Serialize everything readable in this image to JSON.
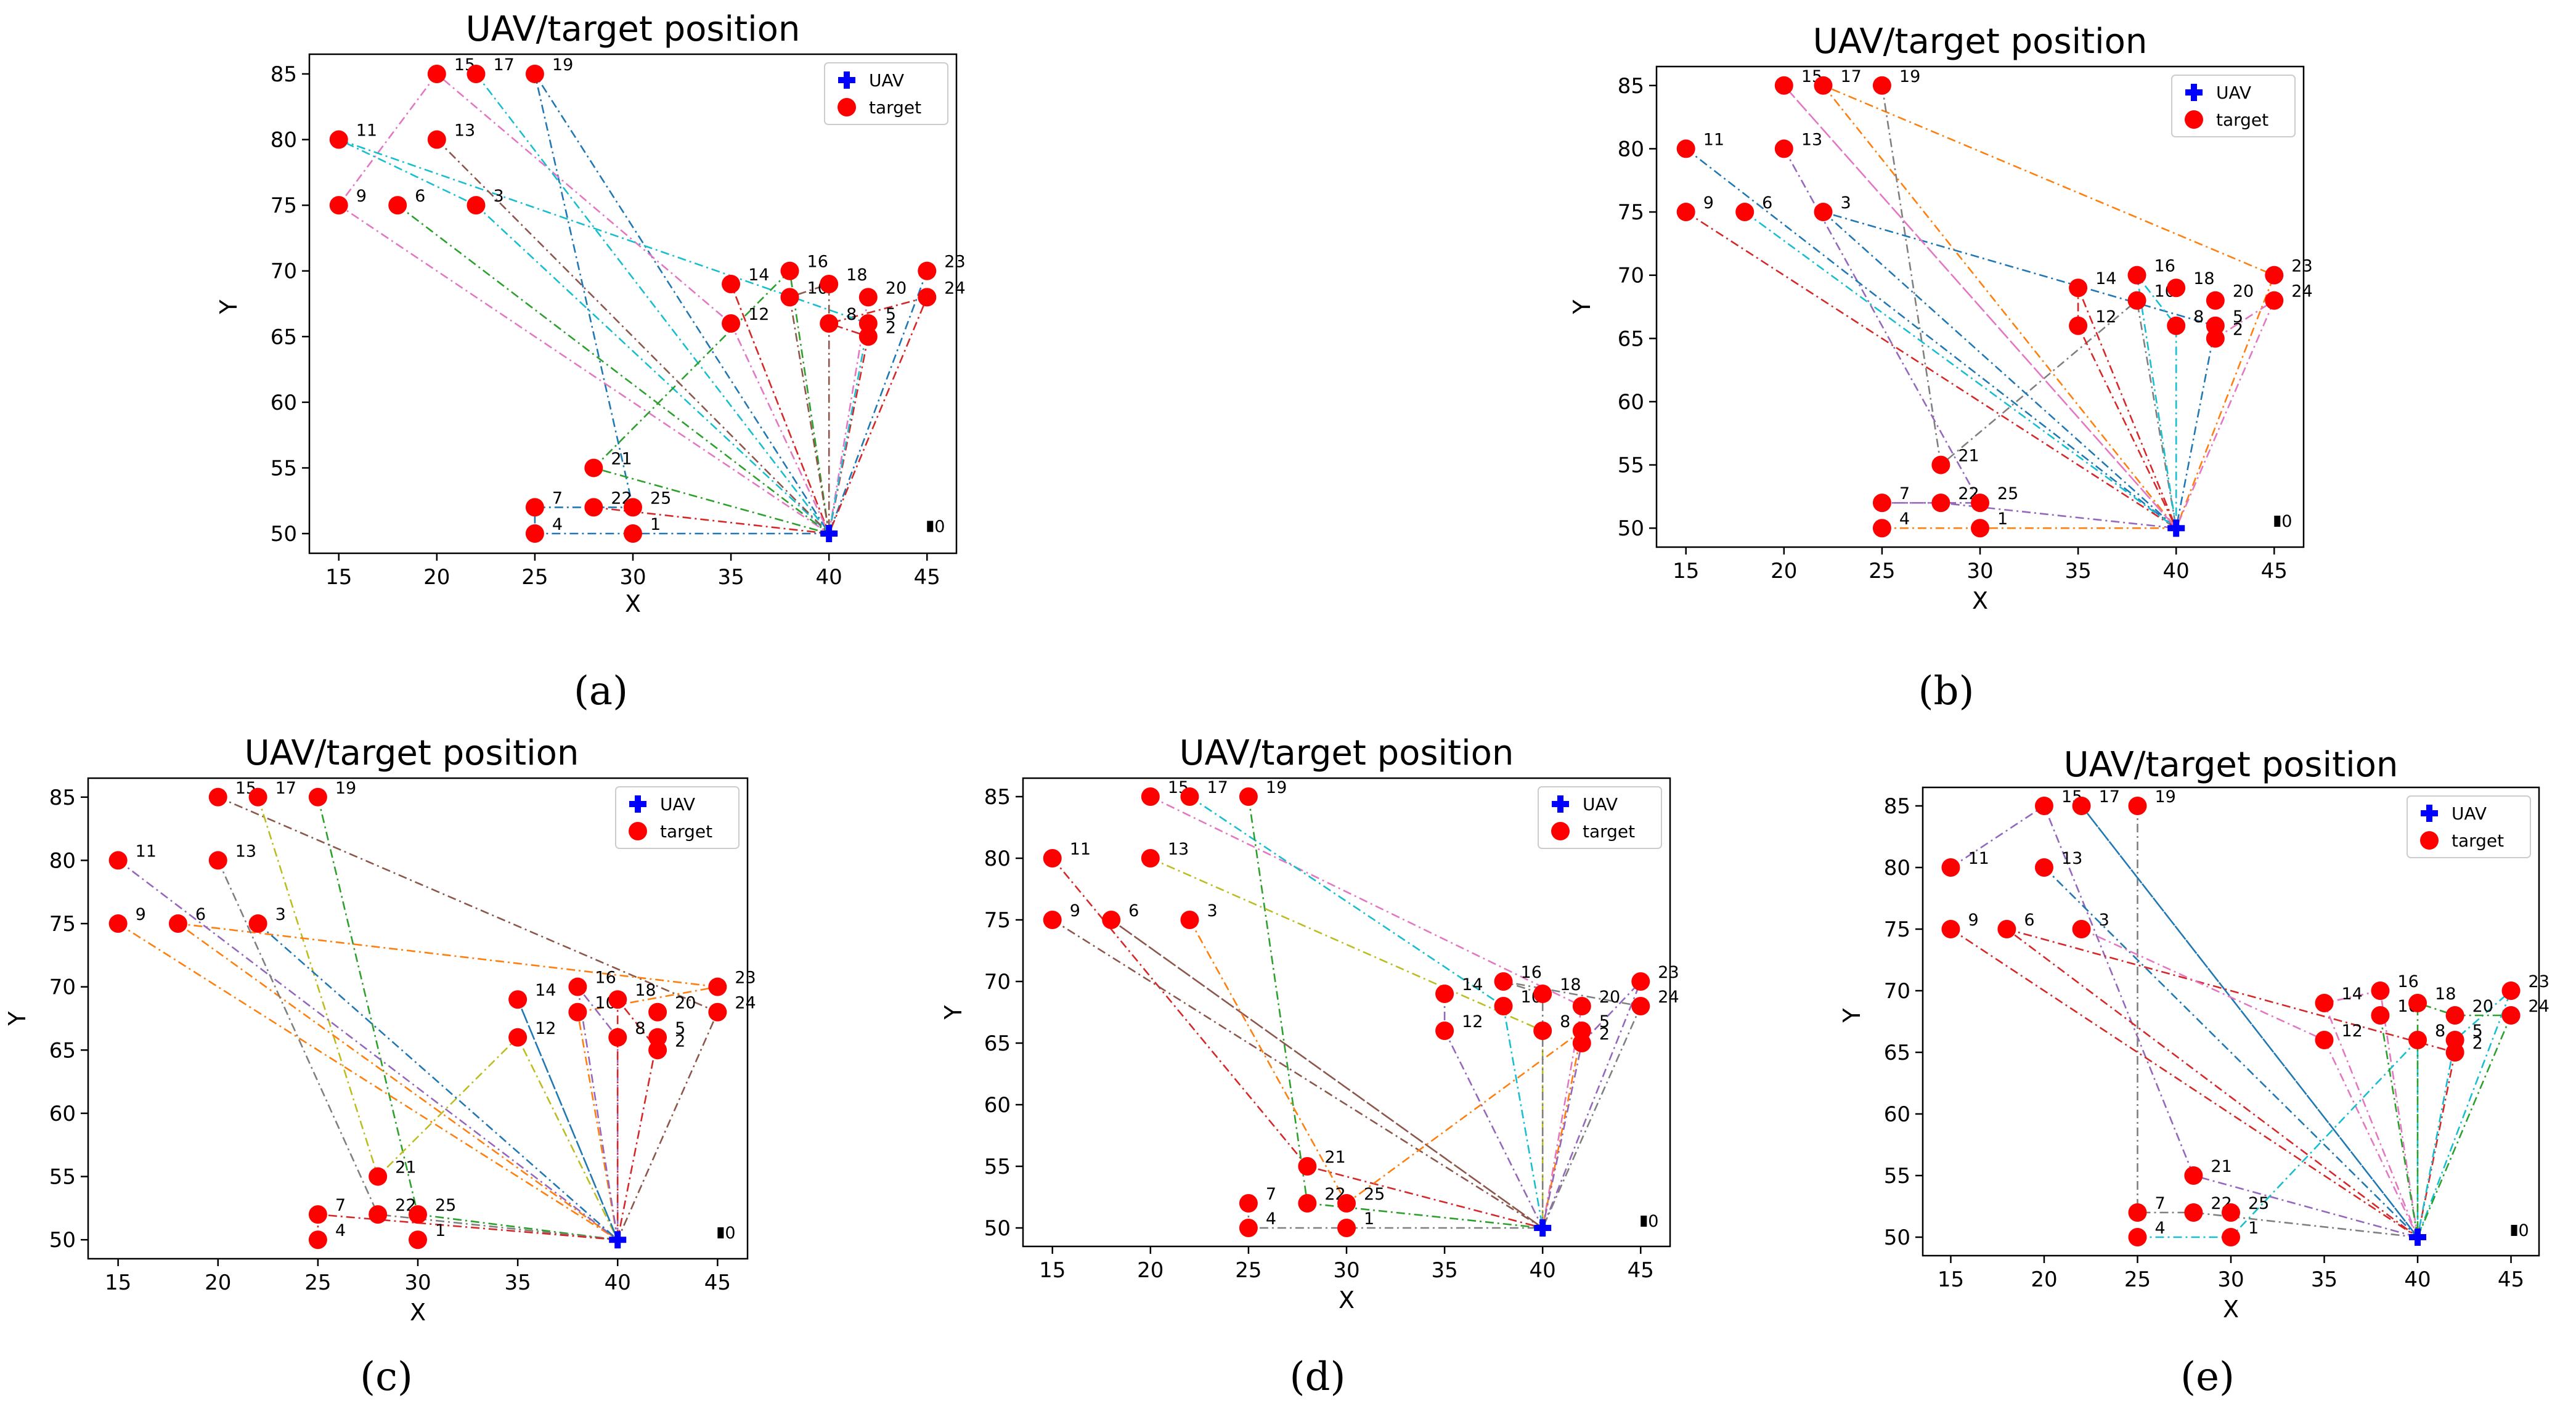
{
  "colors": {
    "uav": "#0000ff",
    "target": "#ff0000",
    "axis": "#000000",
    "route_palette": [
      "#1f77b4",
      "#ff7f0e",
      "#2ca02c",
      "#d62728",
      "#9467bd",
      "#8c564b",
      "#e377c2",
      "#7f7f7f",
      "#bcbd22",
      "#17becf"
    ]
  },
  "chart_data": [
    {
      "type": "scatter",
      "panel": "a",
      "caption": "(a)",
      "title": "UAV/target position",
      "xlabel": "X",
      "ylabel": "Y",
      "xlim": [
        13.5,
        46.5
      ],
      "ylim": [
        48.5,
        86.5
      ],
      "xticks": [
        15,
        20,
        25,
        30,
        35,
        40,
        45
      ],
      "yticks": [
        50,
        55,
        60,
        65,
        70,
        75,
        80,
        85
      ],
      "legend": {
        "placement": "top-right",
        "entries": [
          "UAV",
          "target"
        ]
      },
      "uav": {
        "x": 40,
        "y": 50
      },
      "targets": [
        {
          "id": "1",
          "x": 30,
          "y": 50
        },
        {
          "id": "2",
          "x": 42,
          "y": 65
        },
        {
          "id": "3",
          "x": 22,
          "y": 75
        },
        {
          "id": "4",
          "x": 25,
          "y": 50
        },
        {
          "id": "5",
          "x": 42,
          "y": 66
        },
        {
          "id": "6",
          "x": 18,
          "y": 75
        },
        {
          "id": "7",
          "x": 25,
          "y": 52
        },
        {
          "id": "8",
          "x": 40,
          "y": 66
        },
        {
          "id": "9",
          "x": 15,
          "y": 75
        },
        {
          "id": "10",
          "x": 38,
          "y": 68
        },
        {
          "id": "11",
          "x": 15,
          "y": 80
        },
        {
          "id": "12",
          "x": 35,
          "y": 66
        },
        {
          "id": "13",
          "x": 20,
          "y": 80
        },
        {
          "id": "14",
          "x": 35,
          "y": 69
        },
        {
          "id": "15",
          "x": 20,
          "y": 85
        },
        {
          "id": "16",
          "x": 38,
          "y": 70
        },
        {
          "id": "17",
          "x": 22,
          "y": 85
        },
        {
          "id": "18",
          "x": 40,
          "y": 69
        },
        {
          "id": "19",
          "x": 25,
          "y": 85
        },
        {
          "id": "20",
          "x": 42,
          "y": 68
        },
        {
          "id": "21",
          "x": 28,
          "y": 55
        },
        {
          "id": "22",
          "x": 28,
          "y": 52
        },
        {
          "id": "23",
          "x": 45,
          "y": 70
        },
        {
          "id": "24",
          "x": 45,
          "y": 68
        },
        {
          "id": "25",
          "x": 30,
          "y": 52
        }
      ],
      "zero_marker": {
        "x": 45,
        "y": 50.5,
        "label": "0"
      },
      "routes": [
        [
          "23",
          "40,50",
          "19",
          "25",
          "22",
          "7",
          "4",
          "1",
          "40,50"
        ],
        [
          "22",
          "40,50",
          "14",
          "40,50",
          "2",
          "8",
          "24",
          "40,50"
        ],
        [
          "20",
          "40,50",
          "12",
          "15",
          "9",
          "40,50"
        ],
        [
          "17",
          "40,50",
          "3",
          "11",
          "5",
          "40,50"
        ],
        [
          "6",
          "40,50",
          "21",
          "16",
          "40,50"
        ],
        [
          "13",
          "40,50",
          "10",
          "18",
          "40,50"
        ]
      ]
    },
    {
      "type": "scatter",
      "panel": "b",
      "caption": "(b)",
      "title": "UAV/target position",
      "xlabel": "X",
      "ylabel": "Y",
      "xlim": [
        13.5,
        46.5
      ],
      "ylim": [
        48.5,
        86.5
      ],
      "xticks": [
        15,
        20,
        25,
        30,
        35,
        40,
        45
      ],
      "yticks": [
        50,
        55,
        60,
        65,
        70,
        75,
        80,
        85
      ],
      "legend": {
        "placement": "top-right",
        "entries": [
          "UAV",
          "target"
        ]
      },
      "uav": {
        "x": 40,
        "y": 50
      },
      "targets": [
        {
          "id": "1",
          "x": 30,
          "y": 50
        },
        {
          "id": "2",
          "x": 42,
          "y": 65
        },
        {
          "id": "3",
          "x": 22,
          "y": 75
        },
        {
          "id": "4",
          "x": 25,
          "y": 50
        },
        {
          "id": "5",
          "x": 42,
          "y": 66
        },
        {
          "id": "6",
          "x": 18,
          "y": 75
        },
        {
          "id": "7",
          "x": 25,
          "y": 52
        },
        {
          "id": "8",
          "x": 40,
          "y": 66
        },
        {
          "id": "9",
          "x": 15,
          "y": 75
        },
        {
          "id": "10",
          "x": 38,
          "y": 68
        },
        {
          "id": "11",
          "x": 15,
          "y": 80
        },
        {
          "id": "12",
          "x": 35,
          "y": 66
        },
        {
          "id": "13",
          "x": 20,
          "y": 80
        },
        {
          "id": "14",
          "x": 35,
          "y": 69
        },
        {
          "id": "15",
          "x": 20,
          "y": 85
        },
        {
          "id": "16",
          "x": 38,
          "y": 70
        },
        {
          "id": "17",
          "x": 22,
          "y": 85
        },
        {
          "id": "18",
          "x": 40,
          "y": 69
        },
        {
          "id": "19",
          "x": 25,
          "y": 85
        },
        {
          "id": "20",
          "x": 42,
          "y": 68
        },
        {
          "id": "21",
          "x": 28,
          "y": 55
        },
        {
          "id": "22",
          "x": 28,
          "y": 52
        },
        {
          "id": "23",
          "x": 45,
          "y": 70
        },
        {
          "id": "24",
          "x": 45,
          "y": 68
        },
        {
          "id": "25",
          "x": 30,
          "y": 52
        }
      ],
      "zero_marker": {
        "x": 45,
        "y": 50.5,
        "label": "0"
      },
      "routes": [
        [
          "4",
          "40,50",
          "23",
          "17",
          "40,50"
        ],
        [
          "13",
          "25",
          "7",
          "22",
          "40,50"
        ],
        [
          "19",
          "21",
          "10",
          "40,50"
        ],
        [
          "11",
          "40,50",
          "5",
          "3",
          "40,50"
        ],
        [
          "9",
          "40,50",
          "14",
          "12",
          "40,50"
        ],
        [
          "2",
          "24",
          "40,50",
          "15",
          "40,50"
        ],
        [
          "6",
          "40,50",
          "16",
          "8",
          "40,50"
        ]
      ]
    },
    {
      "type": "scatter",
      "panel": "c",
      "caption": "(c)",
      "title": "UAV/target position",
      "xlabel": "X",
      "ylabel": "Y",
      "xlim": [
        13.5,
        46.5
      ],
      "ylim": [
        48.5,
        86.5
      ],
      "xticks": [
        15,
        20,
        25,
        30,
        35,
        40,
        45
      ],
      "yticks": [
        50,
        55,
        60,
        65,
        70,
        75,
        80,
        85
      ],
      "legend": {
        "placement": "top-right",
        "entries": [
          "UAV",
          "target"
        ]
      },
      "uav": {
        "x": 40,
        "y": 50
      },
      "targets": [
        {
          "id": "1",
          "x": 30,
          "y": 50
        },
        {
          "id": "2",
          "x": 42,
          "y": 65
        },
        {
          "id": "3",
          "x": 22,
          "y": 75
        },
        {
          "id": "4",
          "x": 25,
          "y": 50
        },
        {
          "id": "5",
          "x": 42,
          "y": 66
        },
        {
          "id": "6",
          "x": 18,
          "y": 75
        },
        {
          "id": "7",
          "x": 25,
          "y": 52
        },
        {
          "id": "8",
          "x": 40,
          "y": 66
        },
        {
          "id": "9",
          "x": 15,
          "y": 75
        },
        {
          "id": "10",
          "x": 38,
          "y": 68
        },
        {
          "id": "11",
          "x": 15,
          "y": 80
        },
        {
          "id": "12",
          "x": 35,
          "y": 66
        },
        {
          "id": "13",
          "x": 20,
          "y": 80
        },
        {
          "id": "14",
          "x": 35,
          "y": 69
        },
        {
          "id": "15",
          "x": 20,
          "y": 85
        },
        {
          "id": "16",
          "x": 38,
          "y": 70
        },
        {
          "id": "17",
          "x": 22,
          "y": 85
        },
        {
          "id": "18",
          "x": 40,
          "y": 69
        },
        {
          "id": "19",
          "x": 25,
          "y": 85
        },
        {
          "id": "20",
          "x": 42,
          "y": 68
        },
        {
          "id": "21",
          "x": 28,
          "y": 55
        },
        {
          "id": "22",
          "x": 28,
          "y": 52
        },
        {
          "id": "23",
          "x": 45,
          "y": 70
        },
        {
          "id": "24",
          "x": 45,
          "y": 68
        },
        {
          "id": "25",
          "x": 30,
          "y": 52
        }
      ],
      "zero_marker": {
        "x": 45,
        "y": 50.5,
        "label": "0"
      },
      "routes": [
        [
          "19",
          "25",
          "40,50"
        ],
        [
          "15",
          "24",
          "40,50"
        ],
        [
          "17",
          "21",
          "12",
          "40,50"
        ],
        [
          "9",
          "40,50",
          "10",
          "23",
          "6",
          "40,50"
        ],
        [
          "11",
          "40,50",
          "16",
          "8",
          "40,50"
        ],
        [
          "13",
          "22",
          "40,50"
        ],
        [
          "3",
          "40,50",
          "14",
          "40,50"
        ],
        [
          "4",
          "7",
          "40,50",
          "5",
          "2",
          "18",
          "40,50"
        ]
      ]
    },
    {
      "type": "scatter",
      "panel": "d",
      "caption": "(d)",
      "title": "UAV/target position",
      "xlabel": "X",
      "ylabel": "Y",
      "xlim": [
        13.5,
        46.5
      ],
      "ylim": [
        48.5,
        86.5
      ],
      "xticks": [
        15,
        20,
        25,
        30,
        35,
        40,
        45
      ],
      "yticks": [
        50,
        55,
        60,
        65,
        70,
        75,
        80,
        85
      ],
      "legend": {
        "placement": "top-right",
        "entries": [
          "UAV",
          "target"
        ]
      },
      "uav": {
        "x": 40,
        "y": 50
      },
      "targets": [
        {
          "id": "1",
          "x": 30,
          "y": 50
        },
        {
          "id": "2",
          "x": 42,
          "y": 65
        },
        {
          "id": "3",
          "x": 22,
          "y": 75
        },
        {
          "id": "4",
          "x": 25,
          "y": 50
        },
        {
          "id": "5",
          "x": 42,
          "y": 66
        },
        {
          "id": "6",
          "x": 18,
          "y": 75
        },
        {
          "id": "7",
          "x": 25,
          "y": 52
        },
        {
          "id": "8",
          "x": 40,
          "y": 66
        },
        {
          "id": "9",
          "x": 15,
          "y": 75
        },
        {
          "id": "10",
          "x": 38,
          "y": 68
        },
        {
          "id": "11",
          "x": 15,
          "y": 80
        },
        {
          "id": "12",
          "x": 35,
          "y": 66
        },
        {
          "id": "13",
          "x": 20,
          "y": 80
        },
        {
          "id": "14",
          "x": 35,
          "y": 69
        },
        {
          "id": "15",
          "x": 20,
          "y": 85
        },
        {
          "id": "16",
          "x": 38,
          "y": 70
        },
        {
          "id": "17",
          "x": 22,
          "y": 85
        },
        {
          "id": "18",
          "x": 40,
          "y": 69
        },
        {
          "id": "19",
          "x": 25,
          "y": 85
        },
        {
          "id": "20",
          "x": 42,
          "y": 68
        },
        {
          "id": "21",
          "x": 28,
          "y": 55
        },
        {
          "id": "22",
          "x": 28,
          "y": 52
        },
        {
          "id": "23",
          "x": 45,
          "y": 70
        },
        {
          "id": "24",
          "x": 45,
          "y": 68
        },
        {
          "id": "25",
          "x": 30,
          "y": 52
        }
      ],
      "zero_marker": {
        "x": 45,
        "y": 50.5,
        "label": "0"
      },
      "routes": [
        [
          "11",
          "21",
          "40,50"
        ],
        [
          "15",
          "20",
          "40,50"
        ],
        [
          "17",
          "10",
          "40,50"
        ],
        [
          "19",
          "22",
          "40,50"
        ],
        [
          "9",
          "40,50",
          "6",
          "40,50"
        ],
        [
          "13",
          "8",
          "40,50"
        ],
        [
          "3",
          "25",
          "5",
          "40,50"
        ],
        [
          "14",
          "12",
          "40,50",
          "2",
          "23",
          "40,50"
        ],
        [
          "7",
          "4",
          "1",
          "40,50",
          "24",
          "16",
          "18",
          "40,50"
        ]
      ]
    },
    {
      "type": "scatter",
      "panel": "e",
      "caption": "(e)",
      "title": "UAV/target position",
      "xlabel": "X",
      "ylabel": "Y",
      "xlim": [
        13.5,
        46.5
      ],
      "ylim": [
        48.5,
        86.5
      ],
      "xticks": [
        15,
        20,
        25,
        30,
        35,
        40,
        45
      ],
      "yticks": [
        50,
        55,
        60,
        65,
        70,
        75,
        80,
        85
      ],
      "legend": {
        "placement": "top-right",
        "entries": [
          "UAV",
          "target"
        ]
      },
      "uav": {
        "x": 40,
        "y": 50
      },
      "targets": [
        {
          "id": "1",
          "x": 30,
          "y": 50
        },
        {
          "id": "2",
          "x": 42,
          "y": 65
        },
        {
          "id": "3",
          "x": 22,
          "y": 75
        },
        {
          "id": "4",
          "x": 25,
          "y": 50
        },
        {
          "id": "5",
          "x": 42,
          "y": 66
        },
        {
          "id": "6",
          "x": 18,
          "y": 75
        },
        {
          "id": "7",
          "x": 25,
          "y": 52
        },
        {
          "id": "8",
          "x": 40,
          "y": 66
        },
        {
          "id": "9",
          "x": 15,
          "y": 75
        },
        {
          "id": "10",
          "x": 38,
          "y": 68
        },
        {
          "id": "11",
          "x": 15,
          "y": 80
        },
        {
          "id": "12",
          "x": 35,
          "y": 66
        },
        {
          "id": "13",
          "x": 20,
          "y": 80
        },
        {
          "id": "14",
          "x": 35,
          "y": 69
        },
        {
          "id": "15",
          "x": 20,
          "y": 85
        },
        {
          "id": "16",
          "x": 38,
          "y": 70
        },
        {
          "id": "17",
          "x": 22,
          "y": 85
        },
        {
          "id": "18",
          "x": 40,
          "y": 69
        },
        {
          "id": "19",
          "x": 25,
          "y": 85
        },
        {
          "id": "20",
          "x": 42,
          "y": 68
        },
        {
          "id": "21",
          "x": 28,
          "y": 55
        },
        {
          "id": "22",
          "x": 28,
          "y": 52
        },
        {
          "id": "23",
          "x": 45,
          "y": 70
        },
        {
          "id": "24",
          "x": 45,
          "y": 68
        },
        {
          "id": "25",
          "x": 30,
          "y": 52
        }
      ],
      "zero_marker": {
        "x": 45,
        "y": 50.5,
        "label": "0"
      },
      "routes": [
        [
          "11",
          "15",
          "21",
          "40,50"
        ],
        [
          "19",
          "7",
          "22",
          "40,50"
        ],
        [
          "13",
          "40,50",
          "17",
          "40,50"
        ],
        [
          "9",
          "40,50",
          "6",
          "2",
          "40,50"
        ],
        [
          "3",
          "12",
          "40,50",
          "14",
          "16",
          "40,50"
        ],
        [
          "4",
          "1",
          "8",
          "40,50",
          "5",
          "23",
          "40,50"
        ],
        [
          "10",
          "40,50",
          "18",
          "20",
          "24",
          "40,50"
        ]
      ]
    }
  ]
}
